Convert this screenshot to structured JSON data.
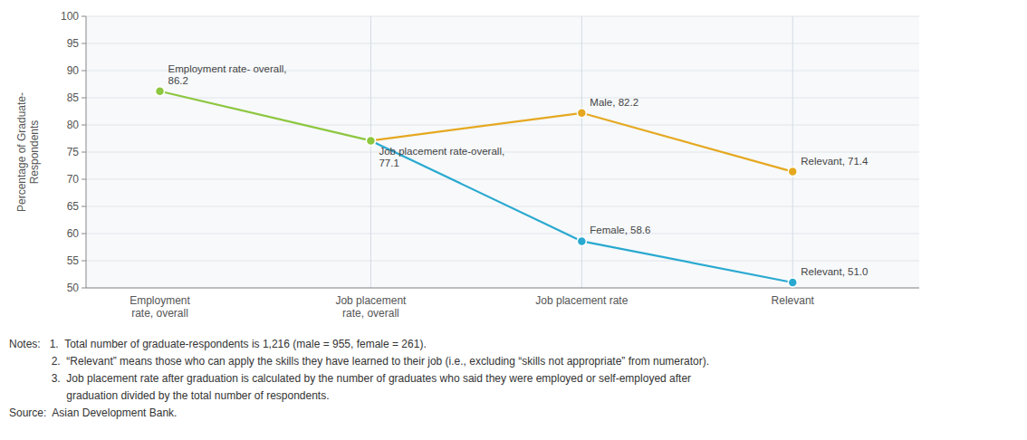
{
  "chart_data": {
    "type": "line",
    "categories": [
      "Employment\nrate, overall",
      "Job placement\nrate, overall",
      "Job placement rate",
      "Relevant"
    ],
    "series": [
      {
        "color": "#e5a820",
        "values": [
          null,
          77.1,
          82.2,
          71.4
        ]
      },
      {
        "color": "#29a9d0",
        "values": [
          null,
          77.1,
          58.6,
          51.0
        ]
      },
      {
        "color": "#8dc63f",
        "values": [
          86.2,
          77.1,
          null,
          null
        ]
      }
    ],
    "annotations": [
      {
        "text": "Job placement rate-overall,\n77.1",
        "x": "Job placement\nrate, overall",
        "y": 77.1
      },
      {
        "text": "Male, 82.2",
        "x": "Job placement rate",
        "y": 82.2
      },
      {
        "text": "Relevant, 71.4",
        "x": "Relevant",
        "y": 71.4
      },
      {
        "text": "Female, 58.6",
        "x": "Job placement rate",
        "y": 58.6
      },
      {
        "text": "Relevant, 51.0",
        "x": "Relevant",
        "y": 51.0
      },
      {
        "text": "Employment rate- overall,\n86.2",
        "x": "Employment\nrate, overall",
        "y": 86.2
      }
    ],
    "y_label": "Percentage of Graduate-\nRespondents",
    "ylim": [
      50,
      100
    ],
    "yticks": [
      50,
      55,
      60,
      65,
      70,
      75,
      80,
      85,
      90,
      95,
      100
    ],
    "grid": true,
    "marker": "circle",
    "notes": [
      "Notes:   1.  Total number of graduate-respondents is 1,216 (male = 955, female = 261).",
      "              2.  “Relevant” means those who can apply the skills they have learned to their job (i.e., excluding “skills not appropriate” from numerator).",
      "              3.  Job placement rate after graduation is calculated by the number of graduates who said they were employed or self-employed after",
      "                   graduation divided by the total number of respondents.",
      "Source:  Asian Development Bank."
    ]
  }
}
